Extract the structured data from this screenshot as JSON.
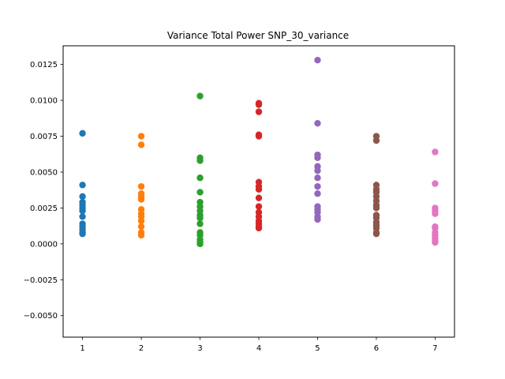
{
  "chart_data": {
    "type": "scatter",
    "title": "Variance Total Power SNP_30_variance",
    "xlabel": "",
    "ylabel": "",
    "xlim": [
      0.67,
      7.33
    ],
    "ylim": [
      -0.0065,
      0.0138
    ],
    "x_ticks": [
      1,
      2,
      3,
      4,
      5,
      6,
      7
    ],
    "x_tick_labels": [
      "1",
      "2",
      "3",
      "4",
      "5",
      "6",
      "7"
    ],
    "y_ticks": [
      -0.005,
      -0.0025,
      0.0,
      0.0025,
      0.005,
      0.0075,
      0.01,
      0.0125
    ],
    "y_tick_labels": [
      "−0.0050",
      "−0.0025",
      "0.0000",
      "0.0025",
      "0.0050",
      "0.0075",
      "0.0100",
      "0.0125"
    ],
    "grid": false,
    "series": [
      {
        "x": 1,
        "color": "#1f77b4",
        "values": [
          0.0077,
          0.0041,
          0.0033,
          0.0029,
          0.0027,
          0.0025,
          0.0023,
          0.0019,
          0.0014,
          0.0012,
          0.001,
          0.0008,
          0.0007
        ]
      },
      {
        "x": 2,
        "color": "#ff7f0e",
        "values": [
          0.0075,
          0.0069,
          0.004,
          0.0035,
          0.0033,
          0.0031,
          0.0024,
          0.0021,
          0.0019,
          0.0016,
          0.0012,
          0.0008,
          0.0006
        ]
      },
      {
        "x": 3,
        "color": "#2ca02c",
        "values": [
          0.0103,
          0.006,
          0.0058,
          0.0046,
          0.0036,
          0.0029,
          0.0026,
          0.0023,
          0.002,
          0.0018,
          0.0014,
          0.0008,
          0.0006,
          0.0003,
          0.0001,
          0.0
        ]
      },
      {
        "x": 4,
        "color": "#d62728",
        "values": [
          0.0098,
          0.0097,
          0.0092,
          0.0076,
          0.0075,
          0.0043,
          0.004,
          0.0038,
          0.0032,
          0.0026,
          0.0022,
          0.0019,
          0.0016,
          0.0014,
          0.0012,
          0.0011
        ]
      },
      {
        "x": 5,
        "color": "#9467bd",
        "values": [
          0.0128,
          0.0084,
          0.0062,
          0.006,
          0.0054,
          0.0051,
          0.0046,
          0.004,
          0.0035,
          0.0026,
          0.0024,
          0.0022,
          0.0019,
          0.0017
        ]
      },
      {
        "x": 6,
        "color": "#8c564b",
        "values": [
          0.0075,
          0.0072,
          0.0041,
          0.0038,
          0.0036,
          0.0033,
          0.003,
          0.0027,
          0.0025,
          0.002,
          0.0018,
          0.0015,
          0.0013,
          0.0011,
          0.0008,
          0.0007
        ]
      },
      {
        "x": 7,
        "color": "#e377c2",
        "values": [
          0.0064,
          0.0042,
          0.0025,
          0.0023,
          0.0021,
          0.0012,
          0.0011,
          0.0008,
          0.0006,
          0.0004,
          0.0002,
          0.0001
        ]
      }
    ]
  }
}
